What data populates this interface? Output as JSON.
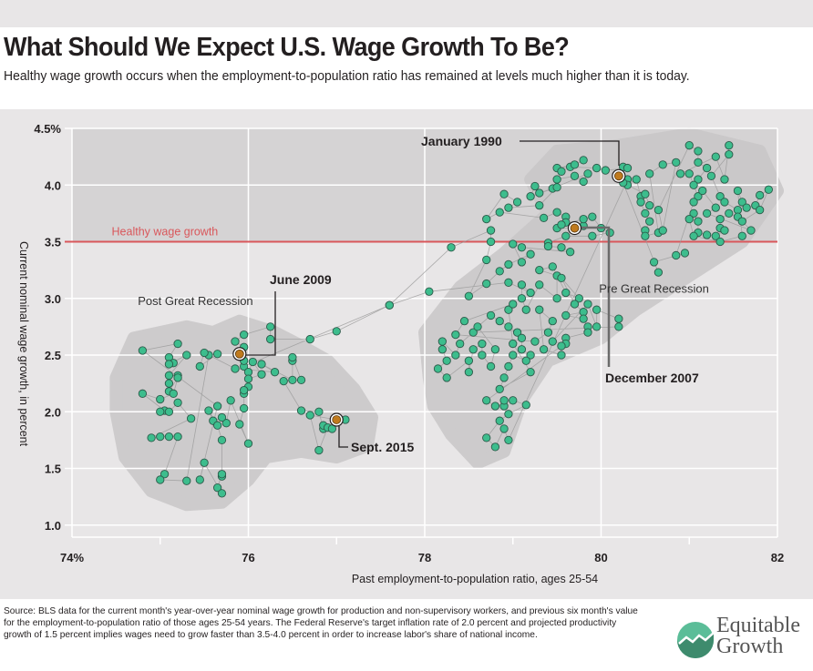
{
  "header": {
    "title": "What Should We Expect U.S. Wage Growth To Be?",
    "subtitle": "Healthy wage growth occurs when the employment-to-population ratio has remained at levels much higher than it is today."
  },
  "footer": {
    "source": "Source: BLS data for the current month's year-over-year nominal wage growth for production and non-supervisory workers, and previous six month's value for the employment-to-population ratio of those ages 25-54 years. The Federal Reserve's target inflation rate of 2.0 percent and projected productivity growth of 1.5 percent implies wages need to grow faster than 3.5-4.0 percent in order to increase labor's share of national income.",
    "logo_line1": "Equitable",
    "logo_line2": "Growth"
  },
  "colors": {
    "point": "#3dbd8d",
    "point_stroke": "#2d5a4a",
    "highlight": "#c07a1e",
    "threshold": "#d9575b",
    "upper_band": "#d5d3d4",
    "cluster": "#c9c7c8",
    "background": "#e8e6e7"
  },
  "chart_data": {
    "type": "scatter",
    "title": "What Should We Expect U.S. Wage Growth To Be?",
    "xlabel": "Past employment-to-population ratio, ages 25-54",
    "ylabel": "Current nominal wage growth, in percent",
    "xlim": [
      74,
      82
    ],
    "ylim": [
      0.85,
      4.5
    ],
    "xticks": [
      74,
      76,
      78,
      80,
      82
    ],
    "xtick_labels": [
      "74%",
      "76",
      "78",
      "80",
      "82"
    ],
    "yticks": [
      1.0,
      1.5,
      2.0,
      2.5,
      3.0,
      3.5,
      4.0,
      4.5
    ],
    "ytick_labels": [
      "1.0",
      "1.5",
      "2.0",
      "2.5",
      "3.0",
      "3.5",
      "4.0",
      "4.5%"
    ],
    "grid": true,
    "threshold": {
      "y": 3.5,
      "label": "Healthy wage growth"
    },
    "region_labels": [
      {
        "text": "Post Great Recession",
        "x": 75.4,
        "y": 2.94
      },
      {
        "text": "Pre Great Recession",
        "x": 80.6,
        "y": 3.05
      }
    ],
    "annotations": [
      {
        "text": "January 1990",
        "x": 80.2,
        "y": 4.08
      },
      {
        "text": "December 2007",
        "x": 79.7,
        "y": 3.62
      },
      {
        "text": "June 2009",
        "x": 75.9,
        "y": 2.51
      },
      {
        "text": "Sept. 2015",
        "x": 77.0,
        "y": 1.93
      }
    ],
    "series": [
      {
        "name": "Pre Great Recession",
        "points": [
          [
            80.2,
            4.08
          ],
          [
            80.25,
            4.16
          ],
          [
            80.3,
            4.15
          ],
          [
            80.05,
            4.13
          ],
          [
            79.95,
            4.15
          ],
          [
            79.65,
            4.16
          ],
          [
            79.5,
            4.15
          ],
          [
            79.7,
            4.18
          ],
          [
            79.8,
            4.22
          ],
          [
            79.55,
            4.12
          ],
          [
            79.5,
            4.05
          ],
          [
            79.7,
            4.08
          ],
          [
            79.8,
            4.03
          ],
          [
            79.85,
            4.1
          ],
          [
            79.45,
            3.97
          ],
          [
            79.3,
            3.93
          ],
          [
            79.25,
            3.99
          ],
          [
            79.2,
            3.9
          ],
          [
            79.5,
            3.98
          ],
          [
            79.3,
            3.82
          ],
          [
            78.95,
            3.8
          ],
          [
            79.05,
            3.85
          ],
          [
            78.9,
            3.92
          ],
          [
            78.7,
            3.7
          ],
          [
            78.85,
            3.76
          ],
          [
            79.35,
            3.71
          ],
          [
            79.5,
            3.76
          ],
          [
            79.6,
            3.72
          ],
          [
            79.6,
            3.67
          ],
          [
            79.8,
            3.64
          ],
          [
            79.7,
            3.62
          ],
          [
            79.5,
            3.62
          ],
          [
            79.55,
            3.65
          ],
          [
            79.8,
            3.7
          ],
          [
            79.9,
            3.72
          ],
          [
            80.0,
            3.62
          ],
          [
            80.1,
            3.58
          ],
          [
            79.9,
            3.55
          ],
          [
            79.6,
            3.55
          ],
          [
            79.4,
            3.49
          ],
          [
            79.4,
            3.46
          ],
          [
            79.55,
            3.45
          ],
          [
            79.65,
            3.41
          ],
          [
            79.1,
            3.45
          ],
          [
            79.0,
            3.48
          ],
          [
            79.1,
            3.32
          ],
          [
            79.2,
            3.39
          ],
          [
            78.95,
            3.3
          ],
          [
            78.85,
            3.24
          ],
          [
            78.7,
            3.13
          ],
          [
            78.5,
            3.02
          ],
          [
            78.7,
            3.34
          ],
          [
            78.75,
            3.5
          ],
          [
            78.75,
            3.6
          ],
          [
            78.3,
            3.45
          ],
          [
            77.6,
            2.94
          ],
          [
            78.05,
            3.06
          ],
          [
            78.95,
            3.14
          ],
          [
            79.2,
            3.05
          ],
          [
            79.1,
            3.12
          ],
          [
            79.1,
            3.0
          ],
          [
            79.15,
            2.9
          ],
          [
            79.3,
            3.12
          ],
          [
            79.5,
            3.0
          ],
          [
            79.5,
            3.2
          ],
          [
            79.3,
            3.25
          ],
          [
            79.45,
            3.28
          ],
          [
            79.6,
            3.05
          ],
          [
            79.75,
            3.0
          ],
          [
            79.55,
            3.18
          ],
          [
            79.7,
            2.95
          ],
          [
            79.8,
            2.88
          ],
          [
            79.6,
            2.85
          ],
          [
            79.8,
            2.82
          ],
          [
            79.85,
            2.75
          ],
          [
            79.85,
            2.7
          ],
          [
            79.6,
            2.65
          ],
          [
            79.6,
            2.6
          ],
          [
            79.45,
            2.62
          ],
          [
            79.85,
            2.95
          ],
          [
            79.95,
            2.75
          ],
          [
            79.95,
            2.9
          ],
          [
            80.2,
            2.82
          ],
          [
            80.2,
            2.75
          ],
          [
            78.55,
            2.7
          ],
          [
            78.4,
            2.6
          ],
          [
            78.35,
            2.5
          ],
          [
            78.2,
            2.62
          ],
          [
            78.2,
            2.55
          ],
          [
            78.25,
            2.45
          ],
          [
            78.15,
            2.38
          ],
          [
            78.25,
            2.3
          ],
          [
            78.5,
            2.45
          ],
          [
            78.5,
            2.35
          ],
          [
            78.55,
            2.55
          ],
          [
            78.65,
            2.6
          ],
          [
            78.65,
            2.5
          ],
          [
            78.75,
            2.4
          ],
          [
            78.8,
            2.55
          ],
          [
            78.6,
            2.75
          ],
          [
            78.75,
            2.85
          ],
          [
            78.85,
            2.8
          ],
          [
            78.95,
            2.75
          ],
          [
            79.05,
            2.7
          ],
          [
            79.1,
            2.65
          ],
          [
            79.1,
            2.55
          ],
          [
            79.2,
            2.5
          ],
          [
            79.15,
            2.45
          ],
          [
            79.0,
            2.5
          ],
          [
            78.95,
            2.4
          ],
          [
            78.9,
            2.3
          ],
          [
            78.85,
            2.2
          ],
          [
            79.2,
            2.35
          ],
          [
            79.0,
            2.6
          ],
          [
            78.95,
            2.9
          ],
          [
            79.0,
            2.95
          ],
          [
            78.45,
            2.8
          ],
          [
            78.35,
            2.68
          ],
          [
            79.25,
            2.62
          ],
          [
            79.4,
            2.7
          ],
          [
            79.45,
            2.8
          ],
          [
            79.3,
            2.9
          ],
          [
            79.35,
            2.55
          ],
          [
            79.55,
            2.5
          ],
          [
            79.55,
            2.58
          ],
          [
            78.7,
            2.1
          ],
          [
            78.8,
            2.05
          ],
          [
            78.9,
            2.05
          ],
          [
            78.9,
            2.1
          ],
          [
            79.0,
            2.1
          ],
          [
            79.15,
            2.06
          ],
          [
            78.95,
            1.98
          ],
          [
            78.85,
            1.92
          ],
          [
            78.7,
            1.77
          ],
          [
            78.8,
            1.69
          ],
          [
            78.9,
            1.85
          ],
          [
            78.95,
            1.75
          ],
          [
            80.3,
            4.05
          ],
          [
            80.3,
            4.0
          ],
          [
            80.4,
            4.05
          ],
          [
            80.45,
            3.9
          ],
          [
            80.45,
            3.85
          ],
          [
            80.5,
            3.75
          ],
          [
            80.55,
            3.68
          ],
          [
            80.5,
            3.6
          ],
          [
            80.5,
            3.55
          ],
          [
            80.65,
            3.58
          ],
          [
            80.55,
            4.1
          ],
          [
            80.7,
            4.18
          ],
          [
            80.85,
            4.2
          ],
          [
            80.7,
            3.6
          ],
          [
            80.65,
            3.78
          ],
          [
            81.0,
            4.35
          ],
          [
            81.1,
            4.3
          ],
          [
            81.1,
            4.2
          ],
          [
            81.2,
            4.15
          ],
          [
            81.1,
            4.05
          ],
          [
            81.05,
            4.0
          ],
          [
            81.1,
            3.9
          ],
          [
            81.0,
            4.1
          ],
          [
            80.9,
            4.1
          ],
          [
            81.3,
            4.25
          ],
          [
            81.4,
            4.05
          ],
          [
            81.45,
            4.35
          ],
          [
            81.45,
            4.27
          ],
          [
            81.25,
            4.08
          ],
          [
            81.35,
            3.9
          ],
          [
            81.4,
            3.85
          ],
          [
            81.55,
            3.78
          ],
          [
            81.55,
            3.72
          ],
          [
            81.45,
            3.75
          ],
          [
            81.35,
            3.7
          ],
          [
            81.35,
            3.62
          ],
          [
            81.4,
            3.6
          ],
          [
            81.3,
            3.55
          ],
          [
            81.2,
            3.56
          ],
          [
            81.1,
            3.58
          ],
          [
            81.1,
            3.68
          ],
          [
            81.05,
            3.75
          ],
          [
            81.0,
            3.7
          ],
          [
            81.05,
            3.55
          ],
          [
            81.35,
            3.5
          ],
          [
            81.6,
            3.55
          ],
          [
            81.55,
            3.95
          ],
          [
            81.6,
            3.85
          ],
          [
            81.65,
            3.8
          ],
          [
            81.75,
            3.82
          ],
          [
            81.8,
            3.91
          ],
          [
            81.9,
            3.96
          ],
          [
            81.8,
            3.78
          ],
          [
            81.6,
            3.68
          ],
          [
            81.7,
            3.6
          ],
          [
            81.2,
            3.75
          ],
          [
            81.3,
            3.8
          ],
          [
            81.15,
            3.95
          ],
          [
            81.05,
            3.85
          ],
          [
            80.85,
            3.38
          ],
          [
            80.95,
            3.4
          ],
          [
            80.6,
            3.32
          ],
          [
            80.65,
            3.23
          ],
          [
            80.25,
            4.02
          ],
          [
            80.5,
            3.92
          ],
          [
            80.55,
            3.82
          ]
        ]
      },
      {
        "name": "Post Great Recession",
        "points": [
          [
            75.9,
            2.51
          ],
          [
            75.95,
            2.57
          ],
          [
            75.85,
            2.62
          ],
          [
            75.95,
            2.68
          ],
          [
            76.25,
            2.75
          ],
          [
            76.25,
            2.64
          ],
          [
            76.7,
            2.64
          ],
          [
            77.0,
            2.71
          ],
          [
            77.6,
            2.94
          ],
          [
            75.95,
            2.4
          ],
          [
            75.95,
            2.45
          ],
          [
            76.0,
            2.35
          ],
          [
            76.05,
            2.44
          ],
          [
            76.15,
            2.33
          ],
          [
            76.0,
            2.29
          ],
          [
            76.0,
            2.22
          ],
          [
            75.95,
            2.16
          ],
          [
            75.95,
            2.19
          ],
          [
            75.95,
            2.03
          ],
          [
            75.9,
            1.89
          ],
          [
            76.0,
            1.72
          ],
          [
            75.8,
            2.1
          ],
          [
            75.75,
            1.9
          ],
          [
            75.7,
            1.95
          ],
          [
            75.6,
            1.92
          ],
          [
            75.55,
            2.01
          ],
          [
            75.65,
            1.88
          ],
          [
            75.7,
            1.75
          ],
          [
            75.7,
            1.43
          ],
          [
            75.7,
            1.45
          ],
          [
            75.65,
            1.33
          ],
          [
            75.7,
            1.28
          ],
          [
            75.5,
            1.55
          ],
          [
            75.45,
            1.4
          ],
          [
            75.65,
            2.05
          ],
          [
            74.8,
            2.54
          ],
          [
            75.2,
            2.6
          ],
          [
            75.1,
            2.48
          ],
          [
            75.15,
            2.43
          ],
          [
            75.1,
            2.42
          ],
          [
            75.3,
            2.5
          ],
          [
            75.1,
            2.32
          ],
          [
            75.2,
            2.32
          ],
          [
            75.1,
            2.25
          ],
          [
            75.1,
            2.18
          ],
          [
            75.2,
            2.3
          ],
          [
            75.15,
            2.16
          ],
          [
            75.0,
            2.11
          ],
          [
            74.8,
            2.16
          ],
          [
            75.05,
            2.01
          ],
          [
            75.0,
            2.0
          ],
          [
            75.1,
            2.0
          ],
          [
            75.2,
            2.08
          ],
          [
            75.35,
            1.94
          ],
          [
            74.9,
            1.77
          ],
          [
            75.0,
            1.78
          ],
          [
            75.1,
            1.78
          ],
          [
            75.2,
            1.78
          ],
          [
            75.05,
            1.45
          ],
          [
            75.0,
            1.4
          ],
          [
            75.3,
            1.39
          ],
          [
            75.55,
            2.5
          ],
          [
            75.65,
            2.51
          ],
          [
            75.45,
            2.4
          ],
          [
            75.5,
            2.52
          ],
          [
            75.85,
            2.38
          ],
          [
            76.3,
            2.35
          ],
          [
            76.15,
            2.42
          ],
          [
            76.5,
            2.28
          ],
          [
            76.5,
            2.45
          ],
          [
            76.5,
            2.48
          ],
          [
            76.6,
            2.28
          ],
          [
            76.4,
            2.27
          ],
          [
            76.6,
            2.01
          ],
          [
            76.8,
            2.0
          ],
          [
            76.85,
            1.85
          ],
          [
            76.85,
            1.88
          ],
          [
            76.9,
            1.86
          ],
          [
            76.8,
            1.66
          ],
          [
            76.7,
            1.97
          ],
          [
            77.0,
            1.93
          ],
          [
            77.1,
            1.93
          ],
          [
            76.95,
            1.85
          ]
        ]
      }
    ]
  }
}
